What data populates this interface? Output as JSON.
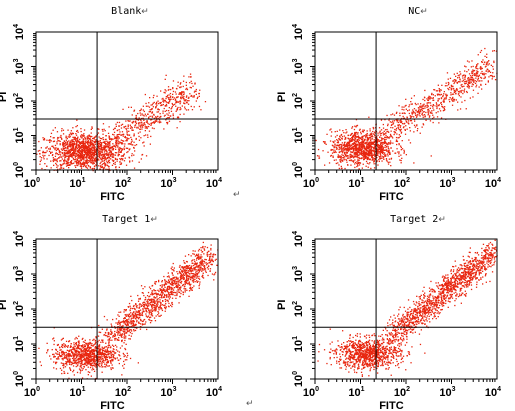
{
  "figure": {
    "paragraph_mark": "↵",
    "bottom_marks": [
      "↵",
      "↵"
    ]
  },
  "colors": {
    "points": "#e8260f",
    "axis": "#000000"
  },
  "chart_data": [
    {
      "type": "scatter",
      "title": "Blank",
      "xlabel": "FITC",
      "ylabel": "PI",
      "xscale": "log",
      "yscale": "log",
      "xlim": [
        1,
        10000
      ],
      "ylim": [
        1,
        10000
      ],
      "x_ticks": [
        {
          "base": "10",
          "exp": "0"
        },
        {
          "base": "10",
          "exp": "1"
        },
        {
          "base": "10",
          "exp": "2"
        },
        {
          "base": "10",
          "exp": "3"
        },
        {
          "base": "10",
          "exp": "4"
        }
      ],
      "y_ticks": [
        {
          "base": "10",
          "exp": "0"
        },
        {
          "base": "10",
          "exp": "1"
        },
        {
          "base": "10",
          "exp": "2"
        },
        {
          "base": "10",
          "exp": "3"
        },
        {
          "base": "10",
          "exp": "4"
        }
      ],
      "quadrant_gates": {
        "x": 22,
        "y": 30
      },
      "population": {
        "main": {
          "x_center": 12,
          "y_center": 3.5,
          "spread_x_decades": 0.45,
          "spread_y_decades": 0.28,
          "count": 1400
        },
        "diagonal": {
          "from": [
            50,
            8
          ],
          "to": [
            2500,
            200
          ],
          "count": 500,
          "scatter_decades": 0.25
        }
      }
    },
    {
      "type": "scatter",
      "title": "NC",
      "xlabel": "FITC",
      "ylabel": "PI",
      "xscale": "log",
      "yscale": "log",
      "xlim": [
        1,
        10000
      ],
      "ylim": [
        1,
        10000
      ],
      "x_ticks": [
        {
          "base": "10",
          "exp": "0"
        },
        {
          "base": "10",
          "exp": "1"
        },
        {
          "base": "10",
          "exp": "2"
        },
        {
          "base": "10",
          "exp": "3"
        },
        {
          "base": "10",
          "exp": "4"
        }
      ],
      "y_ticks": [
        {
          "base": "10",
          "exp": "0"
        },
        {
          "base": "10",
          "exp": "1"
        },
        {
          "base": "10",
          "exp": "2"
        },
        {
          "base": "10",
          "exp": "3"
        },
        {
          "base": "10",
          "exp": "4"
        }
      ],
      "quadrant_gates": {
        "x": 22,
        "y": 30
      },
      "population": {
        "main": {
          "x_center": 11,
          "y_center": 4.5,
          "spread_x_decades": 0.35,
          "spread_y_decades": 0.25,
          "count": 1100
        },
        "diagonal": {
          "from": [
            30,
            10
          ],
          "to": [
            8000,
            1200
          ],
          "count": 650,
          "scatter_decades": 0.22
        }
      }
    },
    {
      "type": "scatter",
      "title": "Target 1",
      "xlabel": "FITC",
      "ylabel": "PI",
      "xscale": "log",
      "yscale": "log",
      "xlim": [
        1,
        10000
      ],
      "ylim": [
        1,
        10000
      ],
      "x_ticks": [
        {
          "base": "10",
          "exp": "0"
        },
        {
          "base": "10",
          "exp": "1"
        },
        {
          "base": "10",
          "exp": "2"
        },
        {
          "base": "10",
          "exp": "3"
        },
        {
          "base": "10",
          "exp": "4"
        }
      ],
      "y_ticks": [
        {
          "base": "10",
          "exp": "0"
        },
        {
          "base": "10",
          "exp": "1"
        },
        {
          "base": "10",
          "exp": "2"
        },
        {
          "base": "10",
          "exp": "3"
        },
        {
          "base": "10",
          "exp": "4"
        }
      ],
      "quadrant_gates": {
        "x": 22,
        "y": 30
      },
      "population": {
        "main": {
          "x_center": 12,
          "y_center": 5,
          "spread_x_decades": 0.35,
          "spread_y_decades": 0.22,
          "count": 900
        },
        "diagonal": {
          "from": [
            40,
            15
          ],
          "to": [
            6000,
            3000
          ],
          "count": 1200,
          "scatter_decades": 0.22
        }
      }
    },
    {
      "type": "scatter",
      "title": "Target 2",
      "xlabel": "FITC",
      "ylabel": "PI",
      "xscale": "log",
      "yscale": "log",
      "xlim": [
        1,
        10000
      ],
      "ylim": [
        1,
        10000
      ],
      "x_ticks": [
        {
          "base": "10",
          "exp": "0"
        },
        {
          "base": "10",
          "exp": "1"
        },
        {
          "base": "10",
          "exp": "2"
        },
        {
          "base": "10",
          "exp": "3"
        },
        {
          "base": "10",
          "exp": "4"
        }
      ],
      "y_ticks": [
        {
          "base": "10",
          "exp": "0"
        },
        {
          "base": "10",
          "exp": "1"
        },
        {
          "base": "10",
          "exp": "2"
        },
        {
          "base": "10",
          "exp": "3"
        },
        {
          "base": "10",
          "exp": "4"
        }
      ],
      "quadrant_gates": {
        "x": 22,
        "y": 30
      },
      "population": {
        "main": {
          "x_center": 14,
          "y_center": 5.5,
          "spread_x_decades": 0.35,
          "spread_y_decades": 0.22,
          "count": 900
        },
        "diagonal": {
          "from": [
            40,
            15
          ],
          "to": [
            8000,
            4000
          ],
          "count": 1300,
          "scatter_decades": 0.2
        }
      }
    }
  ]
}
